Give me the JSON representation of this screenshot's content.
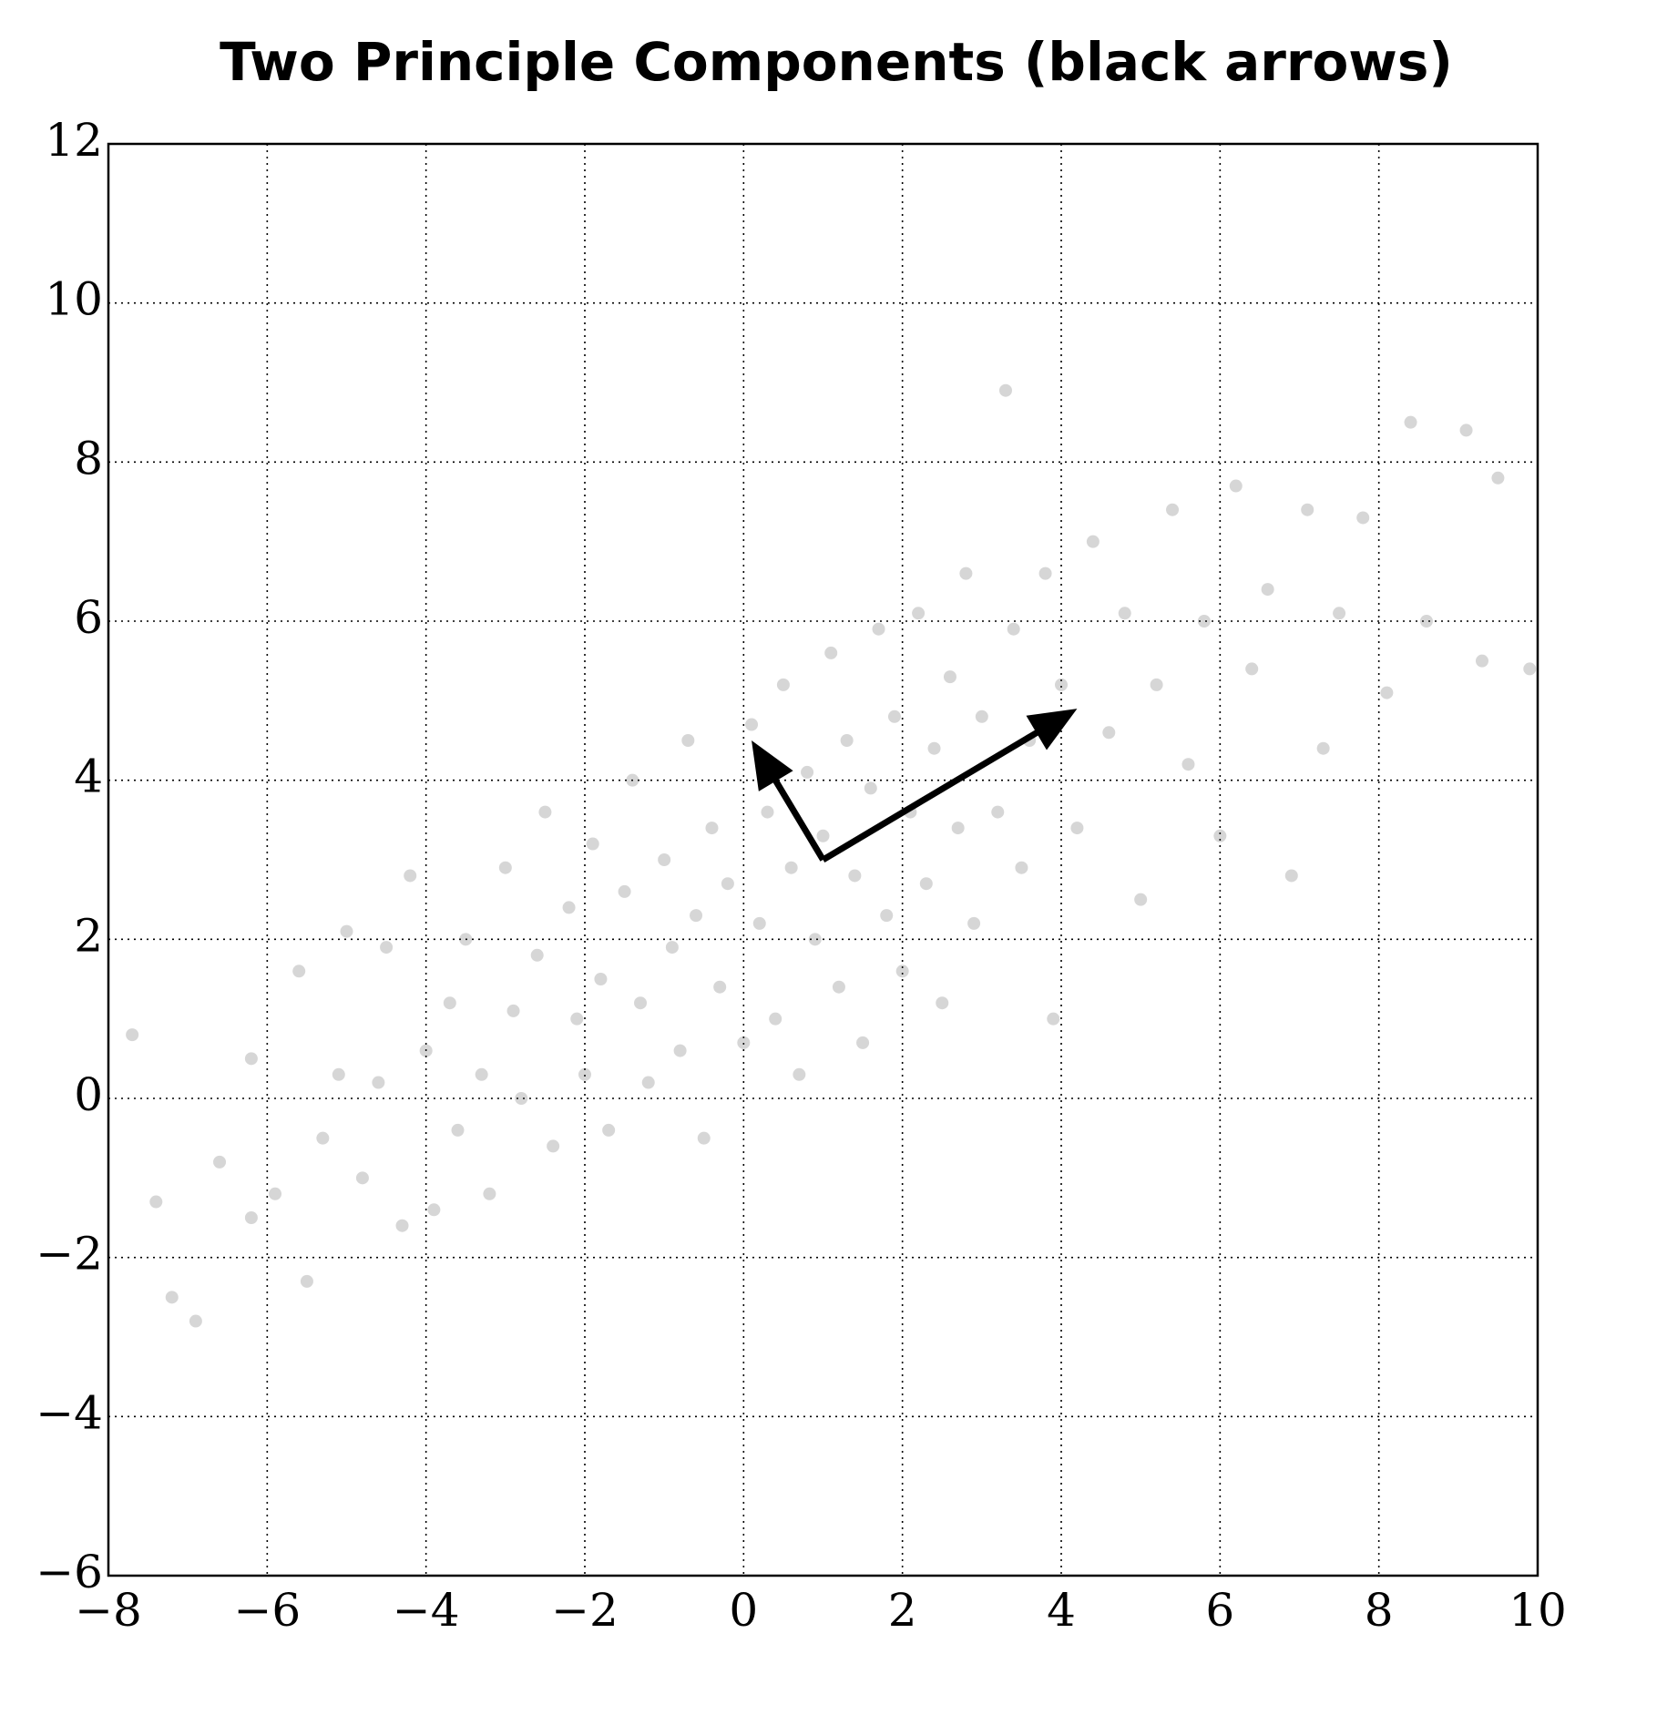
{
  "chart_data": {
    "type": "scatter",
    "title": "Two Principle Components (black arrows)",
    "x": [
      -7.7,
      -7.4,
      -7.2,
      -6.9,
      -6.6,
      -6.2,
      -6.2,
      -5.9,
      -5.6,
      -5.5,
      -5.3,
      -5.1,
      -5.0,
      -4.8,
      -4.6,
      -4.5,
      -4.3,
      -4.2,
      -4.0,
      -3.9,
      -3.7,
      -3.6,
      -3.5,
      -3.3,
      -3.2,
      -3.0,
      -2.9,
      -2.8,
      -2.6,
      -2.5,
      -2.4,
      -2.2,
      -2.1,
      -2.0,
      -1.9,
      -1.8,
      -1.7,
      -1.5,
      -1.4,
      -1.3,
      -1.2,
      -1.0,
      -0.9,
      -0.8,
      -0.7,
      -0.6,
      -0.5,
      -0.4,
      -0.3,
      -0.2,
      0.0,
      0.1,
      0.2,
      0.3,
      0.4,
      0.5,
      0.6,
      0.7,
      0.8,
      0.9,
      1.0,
      1.1,
      1.2,
      1.3,
      1.4,
      1.5,
      1.6,
      1.7,
      1.8,
      1.9,
      2.0,
      2.1,
      2.2,
      2.3,
      2.4,
      2.5,
      2.6,
      2.7,
      2.8,
      2.9,
      3.0,
      3.2,
      3.3,
      3.4,
      3.5,
      3.6,
      3.8,
      3.9,
      4.0,
      4.2,
      4.4,
      4.6,
      4.8,
      5.0,
      5.2,
      5.4,
      5.6,
      5.8,
      6.0,
      6.2,
      6.4,
      6.6,
      6.9,
      7.1,
      7.3,
      7.5,
      7.8,
      8.1,
      8.4,
      8.6,
      9.1,
      9.3,
      9.5,
      9.9
    ],
    "values": [
      0.8,
      -1.3,
      -2.5,
      -2.8,
      -0.8,
      0.5,
      -1.5,
      -1.2,
      1.6,
      -2.3,
      -0.5,
      0.3,
      2.1,
      -1.0,
      0.2,
      1.9,
      -1.6,
      2.8,
      0.6,
      -1.4,
      1.2,
      -0.4,
      2.0,
      0.3,
      -1.2,
      2.9,
      1.1,
      0.0,
      1.8,
      3.6,
      -0.6,
      2.4,
      1.0,
      0.3,
      3.2,
      1.5,
      -0.4,
      2.6,
      4.0,
      1.2,
      0.2,
      3.0,
      1.9,
      0.6,
      4.5,
      2.3,
      -0.5,
      3.4,
      1.4,
      2.7,
      0.7,
      4.7,
      2.2,
      3.6,
      1.0,
      5.2,
      2.9,
      0.3,
      4.1,
      2.0,
      3.3,
      5.6,
      1.4,
      4.5,
      2.8,
      0.7,
      3.9,
      5.9,
      2.3,
      4.8,
      1.6,
      3.6,
      6.1,
      2.7,
      4.4,
      1.2,
      5.3,
      3.4,
      6.6,
      2.2,
      4.8,
      3.6,
      8.9,
      5.9,
      2.9,
      4.5,
      6.6,
      1.0,
      5.2,
      3.4,
      7.0,
      4.6,
      6.1,
      2.5,
      5.2,
      7.4,
      4.2,
      6.0,
      3.3,
      7.7,
      5.4,
      6.4,
      2.8,
      7.4,
      4.4,
      6.1,
      7.3,
      5.1,
      8.5,
      6.0,
      8.4,
      5.5,
      7.8,
      5.4
    ],
    "color": "rgba(70,70,70,0.22)",
    "arrows": [
      {
        "x": [
          1,
          4.2
        ],
        "y": [
          3,
          4.9
        ]
      },
      {
        "x": [
          1,
          0.1
        ],
        "y": [
          3,
          4.5
        ]
      }
    ],
    "arrow_color": "#000",
    "xlim": [
      -8,
      10
    ],
    "ylim": [
      -6,
      12
    ],
    "xticks": [
      {
        "value": -8,
        "label": "−8"
      },
      {
        "value": -6,
        "label": "−6"
      },
      {
        "value": -4,
        "label": "−4"
      },
      {
        "value": -2,
        "label": "−2"
      },
      0,
      2,
      4,
      6,
      8,
      10
    ],
    "yticks": [
      {
        "value": -6,
        "label": "−6"
      },
      {
        "value": -4,
        "label": "−4"
      },
      {
        "value": -2,
        "label": "−2"
      },
      0,
      2,
      4,
      6,
      8,
      10,
      12
    ],
    "grid": true
  }
}
